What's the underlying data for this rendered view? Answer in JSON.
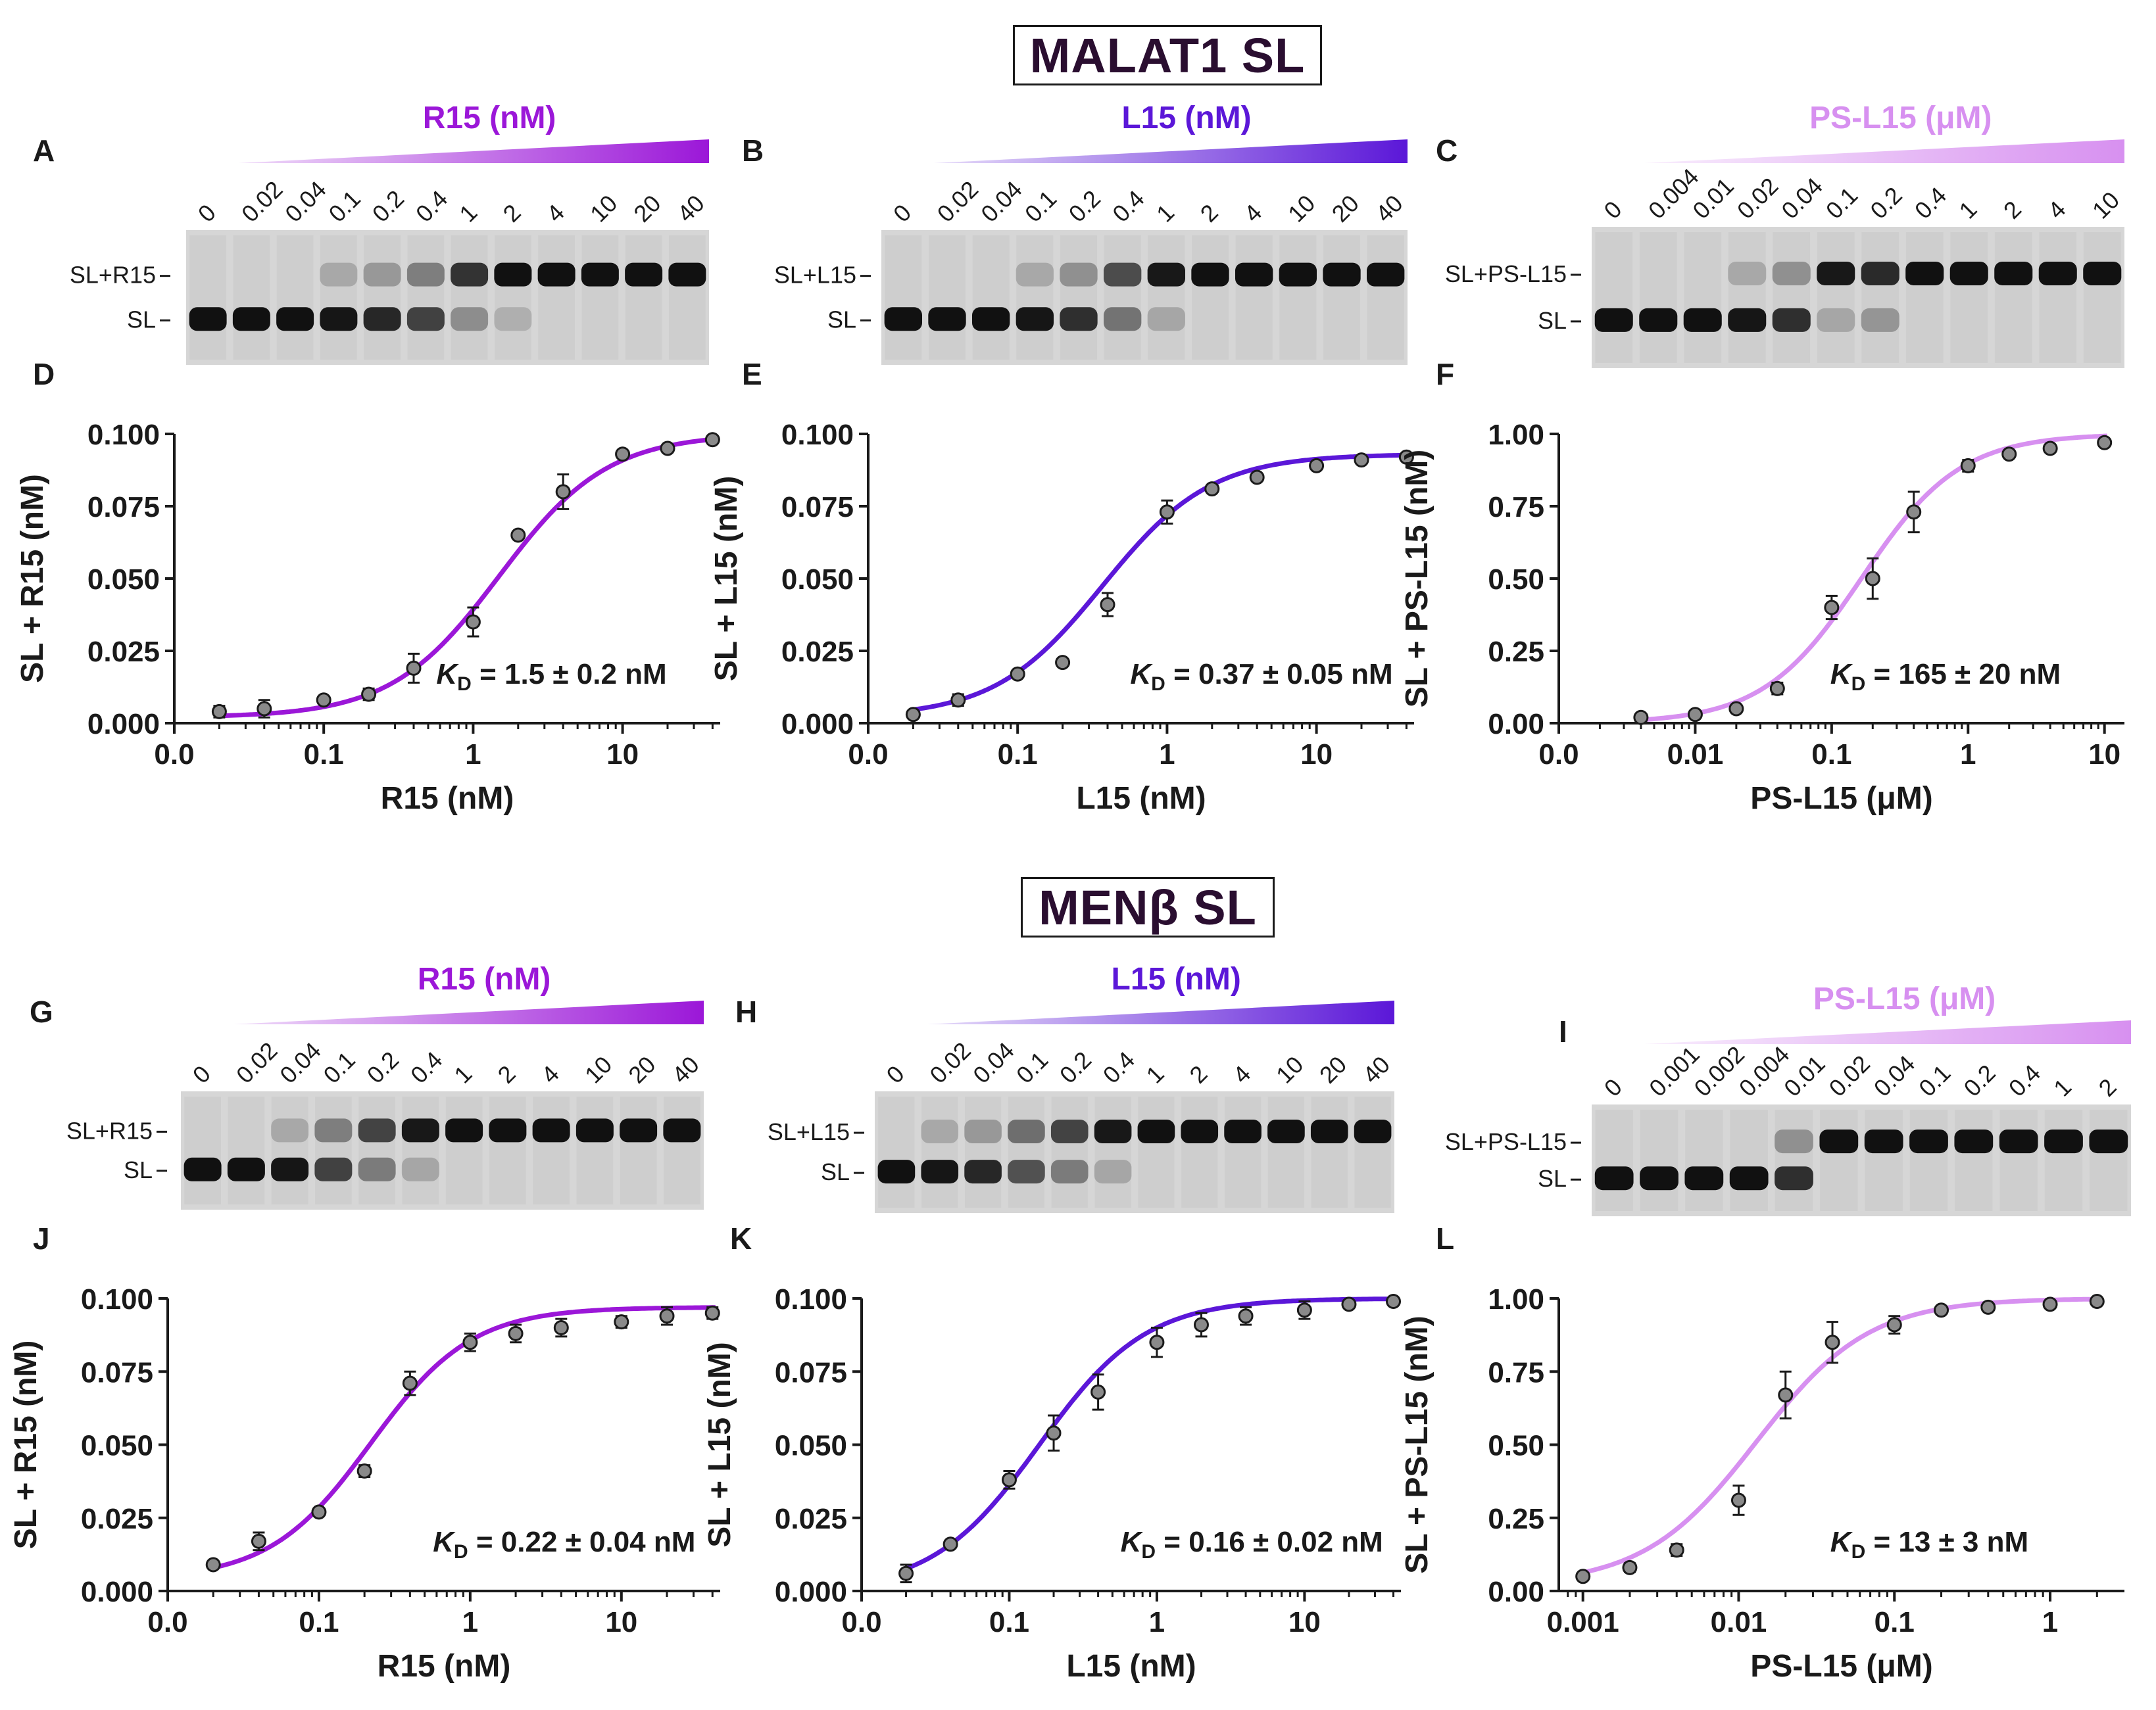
{
  "figure": {
    "section_top_title": "MALAT1 SL",
    "section_bottom_title": "MENβ SL",
    "colors": {
      "R15": "#9b17d8",
      "L15": "#5b17d8",
      "PS-L15": "#d790f0",
      "text": "#1a1a1a"
    }
  },
  "gels": [
    {
      "letter": "A",
      "header": "R15 (nM)",
      "color_key": "R15",
      "lanes": [
        "0",
        "0.02",
        "0.04",
        "0.1",
        "0.2",
        "0.4",
        "1",
        "2",
        "4",
        "10",
        "20",
        "40"
      ],
      "complex_label": "SL+R15",
      "free_label": "SL",
      "bound_fraction": [
        0.0,
        0.0,
        0.0,
        0.05,
        0.15,
        0.3,
        0.75,
        0.95,
        1.0,
        1.0,
        1.0,
        1.0
      ]
    },
    {
      "letter": "B",
      "header": "L15 (nM)",
      "color_key": "L15",
      "lanes": [
        "0",
        "0.02",
        "0.04",
        "0.1",
        "0.2",
        "0.4",
        "1",
        "2",
        "4",
        "10",
        "20",
        "40"
      ],
      "complex_label": "SL+L15",
      "free_label": "SL",
      "bound_fraction": [
        0.0,
        0.0,
        0.0,
        0.05,
        0.2,
        0.6,
        0.9,
        1.0,
        1.0,
        1.0,
        1.0,
        1.0
      ]
    },
    {
      "letter": "C",
      "header": "PS-L15 (μM)",
      "color_key": "PS-L15",
      "lanes": [
        "0",
        "0.004",
        "0.01",
        "0.02",
        "0.04",
        "0.1",
        "0.2",
        "0.4",
        "1",
        "2",
        "4",
        "10"
      ],
      "complex_label": "SL+PS-L15",
      "free_label": "SL",
      "bound_fraction": [
        0.0,
        0.0,
        0.0,
        0.05,
        0.2,
        0.9,
        0.8,
        1.0,
        1.0,
        1.0,
        1.0,
        1.0
      ]
    },
    {
      "letter": "G",
      "header": "R15 (nM)",
      "color_key": "R15",
      "lanes": [
        "0",
        "0.02",
        "0.04",
        "0.1",
        "0.2",
        "0.4",
        "1",
        "2",
        "4",
        "10",
        "20",
        "40"
      ],
      "complex_label": "SL+R15",
      "free_label": "SL",
      "bound_fraction": [
        0.0,
        0.0,
        0.05,
        0.3,
        0.65,
        0.9,
        1.0,
        1.0,
        1.0,
        1.0,
        1.0,
        1.0
      ]
    },
    {
      "letter": "H",
      "header": "L15 (nM)",
      "color_key": "L15",
      "lanes": [
        "0",
        "0.02",
        "0.04",
        "0.1",
        "0.2",
        "0.4",
        "1",
        "2",
        "4",
        "10",
        "20",
        "40"
      ],
      "complex_label": "SL+L15",
      "free_label": "SL",
      "bound_fraction": [
        0.0,
        0.05,
        0.15,
        0.4,
        0.65,
        0.9,
        1.0,
        1.0,
        1.0,
        1.0,
        1.0,
        1.0
      ]
    },
    {
      "letter": "I",
      "header": "PS-L15 (μM)",
      "color_key": "PS-L15",
      "lanes": [
        "0",
        "0.001",
        "0.002",
        "0.004",
        "0.01",
        "0.02",
        "0.04",
        "0.1",
        "0.2",
        "0.4",
        "1",
        "2"
      ],
      "complex_label": "SL+PS-L15",
      "free_label": "SL",
      "bound_fraction": [
        0.0,
        0.0,
        0.0,
        0.0,
        0.2,
        1.0,
        1.0,
        1.0,
        1.0,
        1.0,
        1.0,
        1.0
      ]
    }
  ],
  "chart_data": [
    {
      "type": "scatter",
      "letter": "D",
      "color_key": "R15",
      "xlabel": "R15 (nM)",
      "ylabel": "SL + R15 (nM)",
      "xscale": "log",
      "xlim": [
        0.01,
        45
      ],
      "ylim": [
        0,
        0.1
      ],
      "xtick_values": [
        0.01,
        0.1,
        1,
        10
      ],
      "xtick_labels": [
        "0.0",
        "0.1",
        "1",
        "10"
      ],
      "ytick_values": [
        0,
        0.025,
        0.05,
        0.075,
        0.1
      ],
      "ytick_labels": [
        "0.000",
        "0.025",
        "0.050",
        "0.075",
        "0.100"
      ],
      "kd_label": "K",
      "kd_sub": "D",
      "kd_text": " = 1.5 ± 0.2 nM",
      "fit": {
        "bottom": 0.002,
        "top": 0.1,
        "kd": 1.5,
        "n": 1.2
      },
      "x": [
        0.02,
        0.04,
        0.1,
        0.2,
        0.4,
        1,
        2,
        4,
        10,
        20,
        40
      ],
      "y": [
        0.004,
        0.005,
        0.008,
        0.01,
        0.019,
        0.035,
        0.065,
        0.08,
        0.093,
        0.095,
        0.098
      ],
      "err": [
        0.002,
        0.003,
        0.001,
        0.002,
        0.005,
        0.005,
        0.001,
        0.006,
        0.001,
        0.001,
        0.001
      ]
    },
    {
      "type": "scatter",
      "letter": "E",
      "color_key": "L15",
      "xlabel": "L15 (nM)",
      "ylabel": "SL + L15 (nM)",
      "xscale": "log",
      "xlim": [
        0.01,
        45
      ],
      "ylim": [
        0,
        0.1
      ],
      "xtick_values": [
        0.01,
        0.1,
        1,
        10
      ],
      "xtick_labels": [
        "0.0",
        "0.1",
        "1",
        "10"
      ],
      "ytick_values": [
        0,
        0.025,
        0.05,
        0.075,
        0.1
      ],
      "ytick_labels": [
        "0.000",
        "0.025",
        "0.050",
        "0.075",
        "0.100"
      ],
      "kd_label": "K",
      "kd_sub": "D",
      "kd_text": " = 0.37 ± 0.05 nM",
      "fit": {
        "bottom": 0.002,
        "top": 0.093,
        "kd": 0.37,
        "n": 1.2
      },
      "x": [
        0.02,
        0.04,
        0.1,
        0.2,
        0.4,
        1,
        2,
        4,
        10,
        20,
        40
      ],
      "y": [
        0.003,
        0.008,
        0.017,
        0.021,
        0.041,
        0.073,
        0.081,
        0.085,
        0.089,
        0.091,
        0.092
      ],
      "err": [
        0.001,
        0.002,
        0.001,
        0.001,
        0.004,
        0.004,
        0.001,
        0.001,
        0.001,
        0.001,
        0.001
      ]
    },
    {
      "type": "scatter",
      "letter": "F",
      "color_key": "PS-L15",
      "xlabel": "PS-L15 (μM)",
      "ylabel": "SL + PS-L15 (nM)",
      "xscale": "log",
      "xlim": [
        0.001,
        14
      ],
      "ylim": [
        0,
        1
      ],
      "xtick_values": [
        0.001,
        0.01,
        0.1,
        1,
        10
      ],
      "xtick_labels": [
        "0.0",
        "0.01",
        "0.1",
        "1",
        "10"
      ],
      "ytick_values": [
        0,
        0.25,
        0.5,
        0.75,
        1
      ],
      "ytick_labels": [
        "0.00",
        "0.25",
        "0.50",
        "0.75",
        "1.00"
      ],
      "kd_label": "K",
      "kd_sub": "D",
      "kd_text": " = 165 ± 20 nM",
      "fit": {
        "bottom": 0.0,
        "top": 1.0,
        "kd": 0.165,
        "n": 1.2
      },
      "x": [
        0.004,
        0.01,
        0.02,
        0.04,
        0.1,
        0.2,
        0.4,
        1,
        2,
        4,
        10
      ],
      "y": [
        0.02,
        0.03,
        0.05,
        0.12,
        0.4,
        0.5,
        0.73,
        0.89,
        0.93,
        0.95,
        0.97
      ],
      "err": [
        0.005,
        0.005,
        0.01,
        0.02,
        0.04,
        0.07,
        0.07,
        0.02,
        0.01,
        0.01,
        0.01
      ]
    },
    {
      "type": "scatter",
      "letter": "J",
      "color_key": "R15",
      "xlabel": "R15 (nM)",
      "ylabel": "SL + R15 (nM)",
      "xscale": "log",
      "xlim": [
        0.01,
        45
      ],
      "ylim": [
        0,
        0.1
      ],
      "xtick_values": [
        0.01,
        0.1,
        1,
        10
      ],
      "xtick_labels": [
        "0.0",
        "0.1",
        "1",
        "10"
      ],
      "ytick_values": [
        0,
        0.025,
        0.05,
        0.075,
        0.1
      ],
      "ytick_labels": [
        "0.000",
        "0.025",
        "0.050",
        "0.075",
        "0.100"
      ],
      "kd_label": "K",
      "kd_sub": "D",
      "kd_text": " = 0.22 ± 0.04 nM",
      "fit": {
        "bottom": 0.004,
        "top": 0.097,
        "kd": 0.22,
        "n": 1.3
      },
      "x": [
        0.02,
        0.04,
        0.1,
        0.2,
        0.4,
        1,
        2,
        4,
        10,
        20,
        40
      ],
      "y": [
        0.009,
        0.017,
        0.027,
        0.041,
        0.071,
        0.085,
        0.088,
        0.09,
        0.092,
        0.094,
        0.095
      ],
      "err": [
        0.001,
        0.003,
        0.001,
        0.002,
        0.004,
        0.003,
        0.003,
        0.003,
        0.002,
        0.003,
        0.002
      ]
    },
    {
      "type": "scatter",
      "letter": "K",
      "color_key": "L15",
      "xlabel": "L15 (nM)",
      "ylabel": "SL + L15 (nM)",
      "xscale": "log",
      "xlim": [
        0.01,
        45
      ],
      "ylim": [
        0,
        0.1
      ],
      "xtick_values": [
        0.01,
        0.1,
        1,
        10
      ],
      "xtick_labels": [
        "0.0",
        "0.1",
        "1",
        "10"
      ],
      "ytick_values": [
        0,
        0.025,
        0.05,
        0.075,
        0.1
      ],
      "ytick_labels": [
        "0.000",
        "0.025",
        "0.050",
        "0.075",
        "0.100"
      ],
      "kd_label": "K",
      "kd_sub": "D",
      "kd_text": " = 0.16 ± 0.02 nM",
      "fit": {
        "bottom": 0.0,
        "top": 0.1,
        "kd": 0.16,
        "n": 1.2
      },
      "x": [
        0.02,
        0.04,
        0.1,
        0.2,
        0.4,
        1,
        2,
        4,
        10,
        20,
        40
      ],
      "y": [
        0.006,
        0.016,
        0.038,
        0.054,
        0.068,
        0.085,
        0.091,
        0.094,
        0.096,
        0.098,
        0.099
      ],
      "err": [
        0.003,
        0.001,
        0.003,
        0.006,
        0.006,
        0.005,
        0.004,
        0.003,
        0.003,
        0.001,
        0.001
      ]
    },
    {
      "type": "scatter",
      "letter": "L",
      "color_key": "PS-L15",
      "xlabel": "PS-L15 (μM)",
      "ylabel": "SL + PS-L15 (nM)",
      "xscale": "log",
      "xlim": [
        0.0007,
        3
      ],
      "ylim": [
        0,
        1
      ],
      "xtick_values": [
        0.001,
        0.01,
        0.1,
        1
      ],
      "xtick_labels": [
        "0.001",
        "0.01",
        "0.1",
        "1"
      ],
      "ytick_values": [
        0,
        0.25,
        0.5,
        0.75,
        1
      ],
      "ytick_labels": [
        "0.00",
        "0.25",
        "0.50",
        "0.75",
        "1.00"
      ],
      "kd_label": "K",
      "kd_sub": "D",
      "kd_text": " = 13 ± 3 nM",
      "fit": {
        "bottom": 0.02,
        "top": 1.0,
        "kd": 0.013,
        "n": 1.2
      },
      "x": [
        0.001,
        0.002,
        0.004,
        0.01,
        0.02,
        0.04,
        0.1,
        0.2,
        0.4,
        1,
        2
      ],
      "y": [
        0.05,
        0.08,
        0.14,
        0.31,
        0.67,
        0.85,
        0.91,
        0.96,
        0.97,
        0.98,
        0.99
      ],
      "err": [
        0.01,
        0.015,
        0.02,
        0.05,
        0.08,
        0.07,
        0.03,
        0.01,
        0.005,
        0.005,
        0.005
      ]
    }
  ]
}
